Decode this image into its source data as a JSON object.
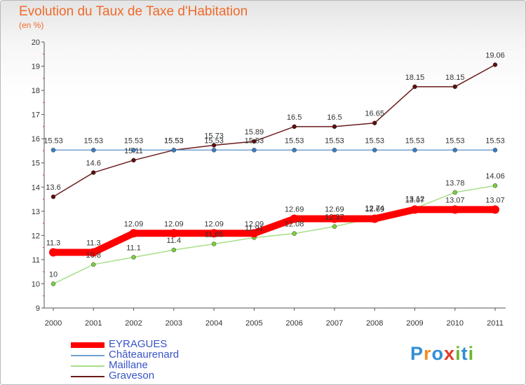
{
  "chart_data": {
    "type": "line",
    "title": "Evolution du Taux de Taxe d'Habitation",
    "subtitle": "(en %)",
    "xlabel": "",
    "ylabel": "(en %)",
    "ylim": [
      9,
      20
    ],
    "yticks": [
      "9",
      "10",
      "11",
      "12",
      "13",
      "14",
      "15",
      "16",
      "17",
      "18",
      "19",
      "20"
    ],
    "categories": [
      "2000",
      "2001",
      "2002",
      "2003",
      "2004",
      "2005",
      "2006",
      "2007",
      "2008",
      "2009",
      "2010",
      "2011"
    ],
    "series": [
      {
        "name": "Graveson",
        "color": "#6b1a1a",
        "marker": "#5a1010",
        "values": [
          13.6,
          14.6,
          15.11,
          15.53,
          15.73,
          15.89,
          16.5,
          16.5,
          16.65,
          18.15,
          18.15,
          19.06
        ],
        "labels": [
          "13.6",
          "14.6",
          "15.11",
          "15.53",
          "15.73",
          "15.89",
          "16.5",
          "16.5",
          "16.65",
          "18.15",
          "18.15",
          "19.06"
        ]
      },
      {
        "name": "Châteaurenard",
        "color": "#6f9fcf",
        "marker": "#3a7dc2",
        "values": [
          15.53,
          15.53,
          15.53,
          15.53,
          15.53,
          15.53,
          15.53,
          15.53,
          15.53,
          15.53,
          15.53,
          15.53
        ],
        "labels": [
          "15.53",
          "15.53",
          "15.53",
          "15.53",
          "15.53",
          "15.53",
          "15.53",
          "15.53",
          "15.53",
          "15.53",
          "15.53",
          "15.53"
        ]
      },
      {
        "name": "Maillane",
        "color": "#a8df8a",
        "marker": "#7ccf3c",
        "values": [
          10,
          10.8,
          11.1,
          11.4,
          11.65,
          11.91,
          12.08,
          12.37,
          12.74,
          13.12,
          13.78,
          14.06
        ],
        "labels": [
          "10",
          "10.8",
          "11.1",
          "11.4",
          "11.65",
          "11.91",
          "12.08",
          "12.37",
          "12.74",
          "13.12",
          "13.78",
          "14.06"
        ]
      },
      {
        "name": "EYRAGUES",
        "color": "#ff0000",
        "marker": "#ff0000",
        "values": [
          11.3,
          11.3,
          12.09,
          12.09,
          12.09,
          12.09,
          12.69,
          12.69,
          12.69,
          13.07,
          13.07,
          13.07
        ],
        "labels": [
          "11.3",
          "11.3",
          "12.09",
          "12.09",
          "12.09",
          "12.09",
          "12.69",
          "12.69",
          "12.69",
          "13.07",
          "13.07",
          "13.07"
        ]
      }
    ],
    "legend": [
      "EYRAGUES",
      "Châteaurenard",
      "Maillane",
      "Graveson"
    ],
    "legend_position": "bottom-left"
  },
  "legend_colors": {
    "EYRAGUES": "#ff0000",
    "Châteaurenard": "#6f9fcf",
    "Maillane": "#a8df8a",
    "Graveson": "#6b1a1a"
  },
  "logo": {
    "text": "Proxiti",
    "letters": [
      "P",
      "r",
      "o",
      "x",
      "i",
      "t",
      "i"
    ],
    "colors": [
      "#2f8fd6",
      "#f28c1e",
      "#2f8fd6",
      "#e23b2a",
      "#6ab82e",
      "#2f8fd6",
      "#6ab82e"
    ]
  }
}
